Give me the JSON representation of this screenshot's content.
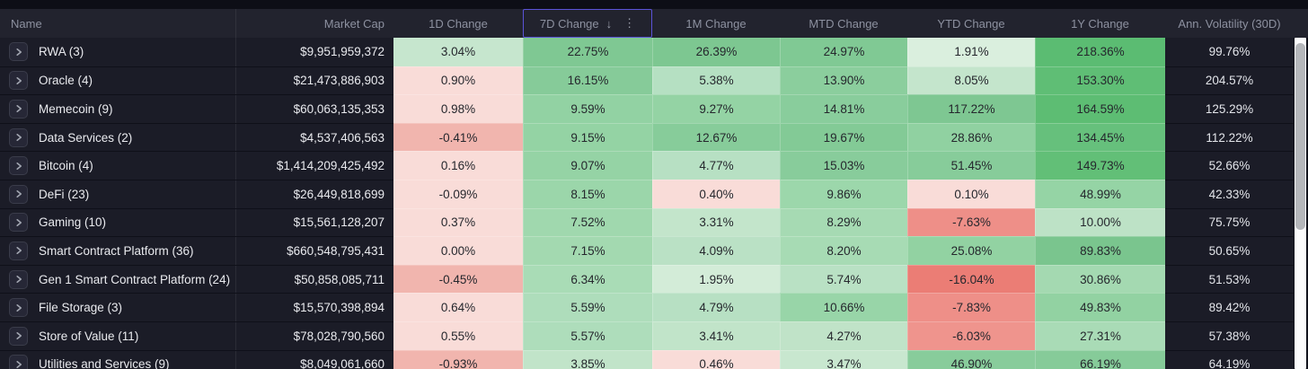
{
  "table": {
    "columns": [
      {
        "id": "name",
        "label": "Name"
      },
      {
        "id": "market-cap",
        "label": "Market Cap"
      },
      {
        "id": "1d-change",
        "label": "1D Change"
      },
      {
        "id": "7d-change",
        "label": "7D Change",
        "sorted": true
      },
      {
        "id": "1m-change",
        "label": "1M Change"
      },
      {
        "id": "mtd-change",
        "label": "MTD Change"
      },
      {
        "id": "ytd-change",
        "label": "YTD Change"
      },
      {
        "id": "1y-change",
        "label": "1Y Change"
      },
      {
        "id": "ann-volatility-30d",
        "label": "Ann. Volatility (30D)"
      }
    ],
    "sort": {
      "column": "7D Change",
      "direction": "desc",
      "arrow_icon": "↓",
      "menu_icon": "⋮"
    },
    "expand_icon": "chevron-right",
    "rows": [
      {
        "name": "RWA (3)",
        "market_cap": "$9,951,959,372",
        "volatility": "99.76%",
        "changes": [
          {
            "value": "3.04%",
            "bg": "#c6e6ce"
          },
          {
            "value": "22.75%",
            "bg": "#7fc893"
          },
          {
            "value": "26.39%",
            "bg": "#7dc791"
          },
          {
            "value": "24.97%",
            "bg": "#80c994"
          },
          {
            "value": "1.91%",
            "bg": "#daefde"
          },
          {
            "value": "218.36%",
            "bg": "#5bbc72"
          }
        ]
      },
      {
        "name": "Oracle (4)",
        "market_cap": "$21,473,886,903",
        "volatility": "204.57%",
        "changes": [
          {
            "value": "0.90%",
            "bg": "#f9dcd8"
          },
          {
            "value": "16.15%",
            "bg": "#86cb99"
          },
          {
            "value": "5.38%",
            "bg": "#b5e0c2"
          },
          {
            "value": "13.90%",
            "bg": "#8bce9d"
          },
          {
            "value": "8.05%",
            "bg": "#c4e5cc"
          },
          {
            "value": "153.30%",
            "bg": "#5fbe75"
          }
        ]
      },
      {
        "name": "Memecoin (9)",
        "market_cap": "$60,063,135,353",
        "volatility": "125.29%",
        "changes": [
          {
            "value": "0.98%",
            "bg": "#f9dcd8"
          },
          {
            "value": "9.59%",
            "bg": "#92d2a3"
          },
          {
            "value": "9.27%",
            "bg": "#94d3a4"
          },
          {
            "value": "14.81%",
            "bg": "#89cd9c"
          },
          {
            "value": "117.22%",
            "bg": "#7ec792"
          },
          {
            "value": "164.59%",
            "bg": "#5dbd73"
          }
        ]
      },
      {
        "name": "Data Services (2)",
        "market_cap": "$4,537,406,563",
        "volatility": "112.22%",
        "changes": [
          {
            "value": "-0.41%",
            "bg": "#f1b5ae"
          },
          {
            "value": "9.15%",
            "bg": "#94d3a4"
          },
          {
            "value": "12.67%",
            "bg": "#87cc9a"
          },
          {
            "value": "19.67%",
            "bg": "#83ca96"
          },
          {
            "value": "28.86%",
            "bg": "#90d1a1"
          },
          {
            "value": "134.45%",
            "bg": "#66c07c"
          }
        ]
      },
      {
        "name": "Bitcoin (4)",
        "market_cap": "$1,414,209,425,492",
        "volatility": "52.66%",
        "changes": [
          {
            "value": "0.16%",
            "bg": "#f9dcd8"
          },
          {
            "value": "9.07%",
            "bg": "#95d3a5"
          },
          {
            "value": "4.77%",
            "bg": "#b7e0c3"
          },
          {
            "value": "15.03%",
            "bg": "#88cc9b"
          },
          {
            "value": "51.45%",
            "bg": "#87cc9a"
          },
          {
            "value": "149.73%",
            "bg": "#62bf77"
          }
        ]
      },
      {
        "name": "DeFi (23)",
        "market_cap": "$26,449,818,699",
        "volatility": "42.33%",
        "changes": [
          {
            "value": "-0.09%",
            "bg": "#f9dcd8"
          },
          {
            "value": "8.15%",
            "bg": "#9bd6aa"
          },
          {
            "value": "0.40%",
            "bg": "#f9dcd8"
          },
          {
            "value": "9.86%",
            "bg": "#9cd7ab"
          },
          {
            "value": "0.10%",
            "bg": "#f9dcd8"
          },
          {
            "value": "48.99%",
            "bg": "#95d4a5"
          }
        ]
      },
      {
        "name": "Gaming (10)",
        "market_cap": "$15,561,128,207",
        "volatility": "75.75%",
        "changes": [
          {
            "value": "0.37%",
            "bg": "#f9dcd8"
          },
          {
            "value": "7.52%",
            "bg": "#a0d8ae"
          },
          {
            "value": "3.31%",
            "bg": "#c3e5cb"
          },
          {
            "value": "8.29%",
            "bg": "#a6dab3"
          },
          {
            "value": "-7.63%",
            "bg": "#ee8f88"
          },
          {
            "value": "10.00%",
            "bg": "#bde2c6"
          }
        ]
      },
      {
        "name": "Smart Contract Platform (36)",
        "market_cap": "$660,548,795,431",
        "volatility": "50.65%",
        "changes": [
          {
            "value": "0.00%",
            "bg": "#f9dcd8"
          },
          {
            "value": "7.15%",
            "bg": "#a3d9b0"
          },
          {
            "value": "4.09%",
            "bg": "#bae1c5"
          },
          {
            "value": "8.20%",
            "bg": "#a7dbb4"
          },
          {
            "value": "25.08%",
            "bg": "#92d2a2"
          },
          {
            "value": "89.83%",
            "bg": "#7ac58e"
          }
        ]
      },
      {
        "name": "Gen 1 Smart Contract Platform (24)",
        "market_cap": "$50,858,085,711",
        "volatility": "51.53%",
        "changes": [
          {
            "value": "-0.45%",
            "bg": "#f1b5ae"
          },
          {
            "value": "6.34%",
            "bg": "#a9dcb6"
          },
          {
            "value": "1.95%",
            "bg": "#d3ecd8"
          },
          {
            "value": "5.74%",
            "bg": "#b9e1c4"
          },
          {
            "value": "-16.04%",
            "bg": "#eb7d75"
          },
          {
            "value": "30.86%",
            "bg": "#a4d9b1"
          }
        ]
      },
      {
        "name": "File Storage (3)",
        "market_cap": "$15,570,398,894",
        "volatility": "89.42%",
        "changes": [
          {
            "value": "0.64%",
            "bg": "#f9dcd8"
          },
          {
            "value": "5.59%",
            "bg": "#aeddbb"
          },
          {
            "value": "4.79%",
            "bg": "#b7e0c3"
          },
          {
            "value": "10.66%",
            "bg": "#98d5a8"
          },
          {
            "value": "-7.83%",
            "bg": "#ee8f88"
          },
          {
            "value": "49.83%",
            "bg": "#92d2a2"
          }
        ]
      },
      {
        "name": "Store of Value (11)",
        "market_cap": "$78,028,790,560",
        "volatility": "57.38%",
        "changes": [
          {
            "value": "0.55%",
            "bg": "#f9dcd8"
          },
          {
            "value": "5.57%",
            "bg": "#aeddbb"
          },
          {
            "value": "3.41%",
            "bg": "#c1e4c9"
          },
          {
            "value": "4.27%",
            "bg": "#c0e3c8"
          },
          {
            "value": "-6.03%",
            "bg": "#ef948d"
          },
          {
            "value": "27.31%",
            "bg": "#a9dbb6"
          }
        ]
      },
      {
        "name": "Utilities and Services (9)",
        "market_cap": "$8,049,061,660",
        "volatility": "64.19%",
        "changes": [
          {
            "value": "-0.93%",
            "bg": "#f1b5ae"
          },
          {
            "value": "3.85%",
            "bg": "#c1e4c9"
          },
          {
            "value": "0.46%",
            "bg": "#f9dcd8"
          },
          {
            "value": "3.47%",
            "bg": "#c8e7cf"
          },
          {
            "value": "46.90%",
            "bg": "#88cc9b"
          },
          {
            "value": "66.19%",
            "bg": "#86cb99"
          }
        ]
      }
    ]
  },
  "colors": {
    "header_bg": "#22232e",
    "row_bg": "#1b1c27",
    "sorted_column_border": "#5b53d8",
    "positive_strong": "#5bbc72",
    "negative_strong": "#eb7d75",
    "scrollbar_track": "#fbfbfc",
    "scrollbar_thumb": "#b5b7bb"
  }
}
